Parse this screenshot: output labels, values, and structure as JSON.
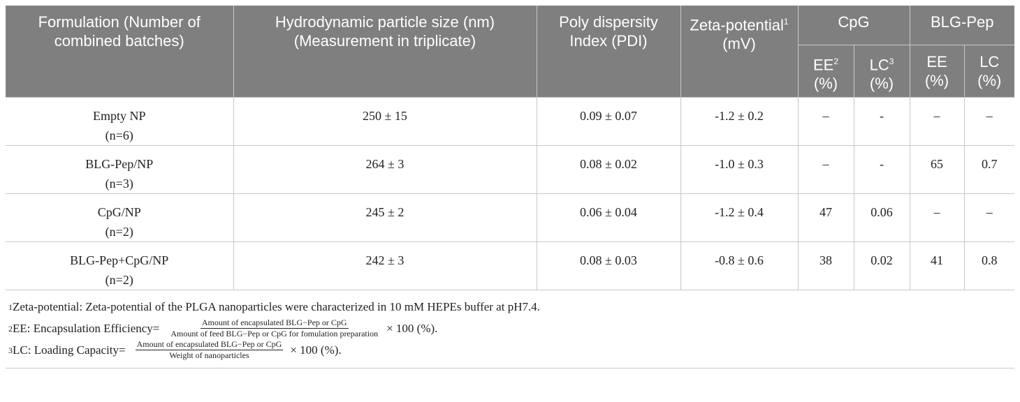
{
  "header": {
    "formulation": "Formulation (Number of combined batches)",
    "size": "Hydrodynamic particle size (nm) (Measurement in triplicate)",
    "pdi": "Poly dispersity Index (PDI)",
    "zeta": "Zeta-potential",
    "zeta_sup": "1",
    "zeta_unit": "(mV)",
    "cpg": "CpG",
    "blg": "BLG-Pep",
    "ee": "EE",
    "ee_sup": "2",
    "lc": "LC",
    "lc_sup": "3",
    "pct": "(%)",
    "ee2": "EE",
    "lc2": "LC"
  },
  "rows": [
    {
      "name": "Empty NP",
      "n": "(n=6)",
      "size": "250 ± 15",
      "pdi": "0.09 ± 0.07",
      "zeta": "-1.2 ± 0.2",
      "cpg_ee": "–",
      "cpg_lc": "-",
      "blg_ee": "–",
      "blg_lc": "–"
    },
    {
      "name": "BLG-Pep/NP",
      "n": "(n=3)",
      "size": "264 ± 3",
      "pdi": "0.08 ± 0.02",
      "zeta": "-1.0 ± 0.3",
      "cpg_ee": "–",
      "cpg_lc": "-",
      "blg_ee": "65",
      "blg_lc": "0.7"
    },
    {
      "name": "CpG/NP",
      "n": "(n=2)",
      "size": "245 ± 2",
      "pdi": "0.06 ± 0.04",
      "zeta": "-1.2 ± 0.4",
      "cpg_ee": "47",
      "cpg_lc": "0.06",
      "blg_ee": "–",
      "blg_lc": "–"
    },
    {
      "name": "BLG-Pep+CpG/NP",
      "n": "(n=2)",
      "size": "242 ± 3",
      "pdi": "0.08 ± 0.03",
      "zeta": "-0.8 ± 0.6",
      "cpg_ee": "38",
      "cpg_lc": "0.02",
      "blg_ee": "41",
      "blg_lc": "0.8"
    }
  ],
  "footnotes": {
    "f1_sup": "1",
    "f1": "Zeta-potential: Zeta-potential of the PLGA nanoparticles were characterized in 10 mM HEPEs buffer at pH7.4.",
    "f2_sup": "2",
    "f2_prefix": "EE: Encapsulation Efficiency=",
    "f2_num": "Amount of encapsulated BLG−Pep or CpG",
    "f2_den": "Amount of feed BLG−Pep or CpG for fomulation preparation",
    "f2_suffix": "× 100 (%).",
    "f3_sup": "3",
    "f3_prefix": "LC: Loading Capacity=",
    "f3_num": "Amount of encapsulated BLG−Pep or CpG",
    "f3_den": "Weight of nanoparticles",
    "f3_suffix": "× 100 (%)."
  }
}
